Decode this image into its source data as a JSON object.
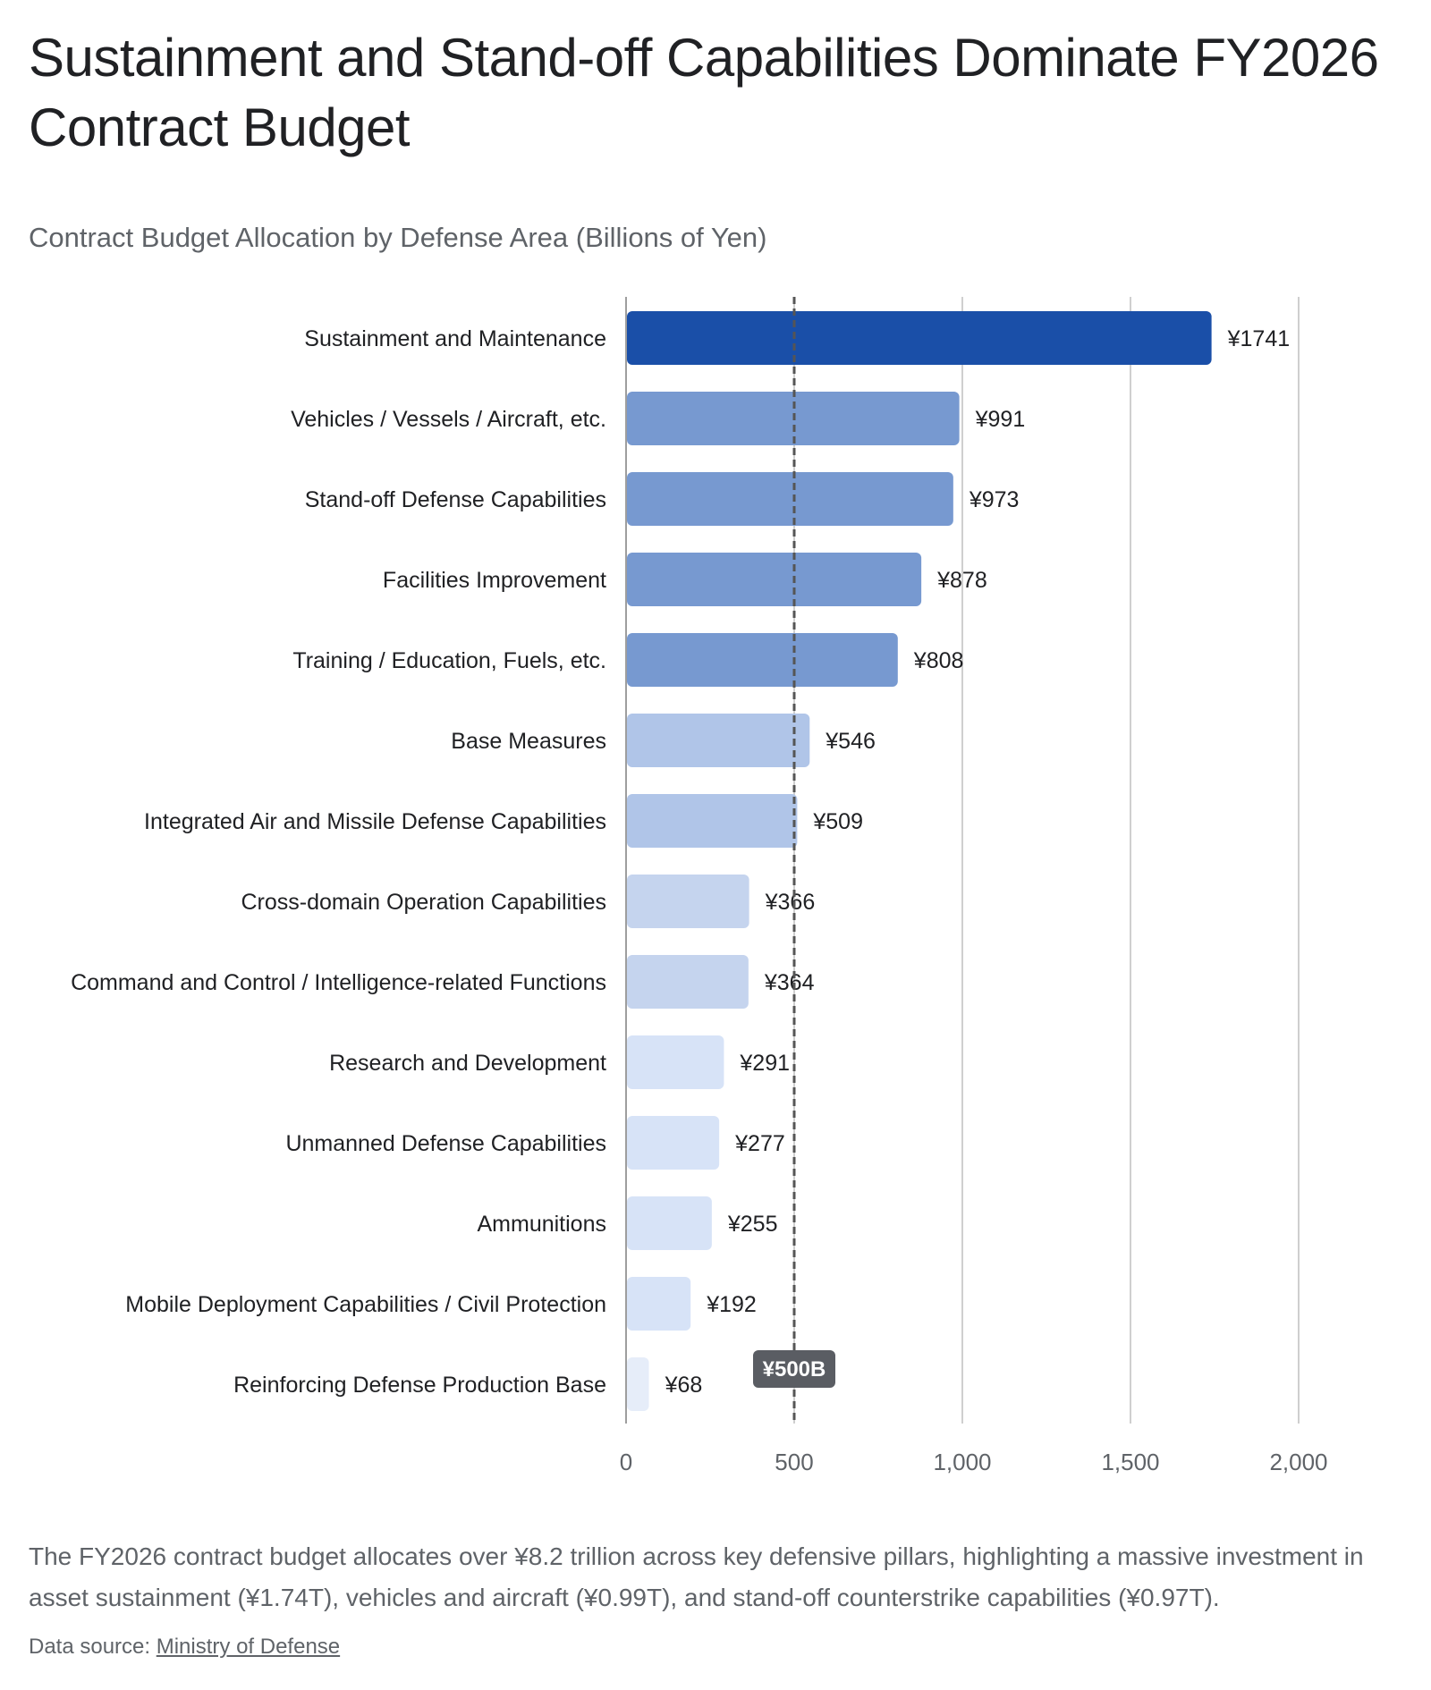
{
  "title": "Sustainment and Stand-off Capabilities Dominate FY2026 Contract Budget",
  "subtitle": "Contract Budget Allocation by Defense Area (Billions of Yen)",
  "summary": "The FY2026 contract budget allocates over ¥8.2 trillion across key defensive pillars, highlighting a massive investment in asset sustainment (¥1.74T), vehicles and aircraft (¥0.99T), and stand-off counterstrike capabilities (¥0.97T).",
  "source": {
    "prefix": "Data source: ",
    "link_text": "Ministry of Defense"
  },
  "chart_data": {
    "type": "bar",
    "orientation": "horizontal",
    "categories": [
      "Sustainment and Maintenance",
      "Vehicles / Vessels / Aircraft, etc.",
      "Stand-off Defense Capabilities",
      "Facilities Improvement",
      "Training / Education, Fuels, etc.",
      "Base Measures",
      "Integrated Air and Missile Defense Capabilities",
      "Cross-domain Operation Capabilities",
      "Command and Control / Intelligence-related Functions",
      "Research and Development",
      "Unmanned Defense Capabilities",
      "Ammunitions",
      "Mobile Deployment Capabilities / Civil Protection",
      "Reinforcing Defense Production Base"
    ],
    "values": [
      1741,
      991,
      973,
      878,
      808,
      546,
      509,
      366,
      364,
      291,
      277,
      255,
      192,
      68
    ],
    "value_labels": [
      "¥1741",
      "¥991",
      "¥973",
      "¥878",
      "¥808",
      "¥546",
      "¥509",
      "¥366",
      "¥364",
      "¥291",
      "¥277",
      "¥255",
      "¥192",
      "¥68"
    ],
    "xlim": [
      0,
      2000
    ],
    "x_ticks": [
      0,
      500,
      1000,
      1500,
      2000
    ],
    "x_tick_labels": [
      "0",
      "500",
      "1,000",
      "1,500",
      "2,000"
    ],
    "grid": true,
    "reference_line": {
      "value": 500,
      "label": "¥500B",
      "style": "dashed"
    },
    "colors": {
      "highlight": "#1a4fa8",
      "high": "#7799d0",
      "mid": "#b0c5e8",
      "low": "#d7e3f7",
      "gridline": "#cfcfcf",
      "axis": "#9e9e9e",
      "reference": "#555555"
    }
  }
}
